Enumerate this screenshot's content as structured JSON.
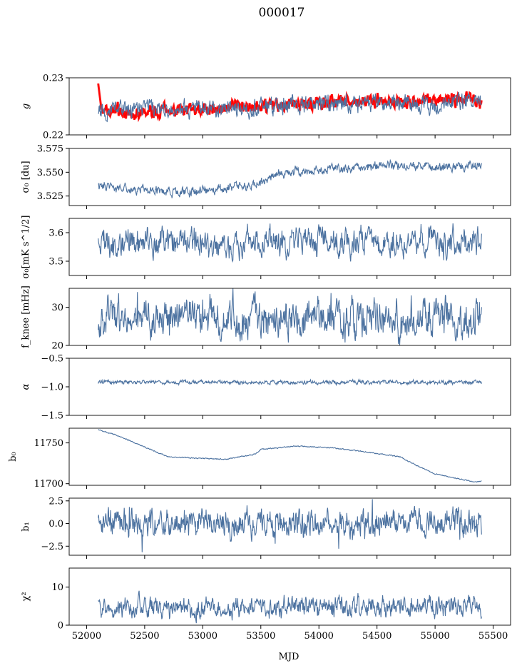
{
  "figure": {
    "title": "000017",
    "xlabel": "MJD"
  },
  "chart_data": [
    {
      "type": "line",
      "ylabel": "g",
      "ylim": [
        0.22,
        0.23
      ],
      "yticks": [
        "0.22",
        "0.23"
      ],
      "xlim": [
        51900,
        55650
      ],
      "series": [
        {
          "color": "#ff0000",
          "x_range": [
            52100,
            55400
          ],
          "description_values": [
            0.2248,
            0.2238,
            0.2242,
            0.2247,
            0.2251,
            0.2257,
            0.2258,
            0.2256,
            0.226,
            0.2262,
            0.2255
          ],
          "x": [
            52100,
            52400,
            52800,
            53200,
            53600,
            54000,
            54400,
            54700,
            55000,
            55300,
            55400
          ]
        },
        {
          "color": "#4c72a0",
          "x": [
            52100,
            52400,
            52800,
            53200,
            53600,
            54000,
            54400,
            54700,
            55000,
            55300,
            55400
          ],
          "values": [
            0.2245,
            0.2245,
            0.2243,
            0.2247,
            0.225,
            0.2255,
            0.2256,
            0.2255,
            0.2256,
            0.2257,
            0.2258
          ]
        }
      ]
    },
    {
      "type": "line",
      "ylabel": "σ₀ [du]",
      "ylim": [
        3.515,
        3.575
      ],
      "yticks": [
        "3.525",
        "3.550",
        "3.575"
      ],
      "series": [
        {
          "color": "#4c72a0",
          "x": [
            52100,
            52300,
            52600,
            52900,
            53200,
            53500,
            53600,
            53800,
            54100,
            54400,
            54700,
            55000,
            55300,
            55400
          ],
          "values": [
            3.537,
            3.533,
            3.53,
            3.53,
            3.533,
            3.538,
            3.546,
            3.551,
            3.553,
            3.555,
            3.558,
            3.555,
            3.556,
            3.558
          ]
        }
      ]
    },
    {
      "type": "line",
      "ylabel": "σ₀[mK s^1/2]",
      "ylim": [
        3.45,
        3.65
      ],
      "yticks": [
        "3.5",
        "3.6"
      ],
      "series": [
        {
          "color": "#4c72a0",
          "x": [
            52100,
            52500,
            52900,
            53300,
            53700,
            54100,
            54500,
            54900,
            55300,
            55400
          ],
          "values": [
            3.57,
            3.565,
            3.56,
            3.555,
            3.565,
            3.57,
            3.565,
            3.57,
            3.565,
            3.57
          ]
        }
      ]
    },
    {
      "type": "line",
      "ylabel": "f_knee [mHz]",
      "ylim": [
        20,
        35
      ],
      "yticks": [
        "20",
        "30"
      ],
      "series": [
        {
          "color": "#4c72a0",
          "x": [
            52100,
            52500,
            52900,
            53300,
            53700,
            54100,
            54500,
            54900,
            55300,
            55400
          ],
          "values": [
            27,
            27,
            27,
            27,
            26.5,
            26.5,
            27,
            27,
            27.5,
            28
          ]
        }
      ]
    },
    {
      "type": "line",
      "ylabel": "α",
      "ylim": [
        -1.5,
        -0.5
      ],
      "yticks": [
        "−1.5",
        "−1.0",
        "−0.5"
      ],
      "series": [
        {
          "color": "#4c72a0",
          "x": [
            52100,
            52800,
            53500,
            54200,
            54900,
            55400
          ],
          "values": [
            -0.92,
            -0.92,
            -0.92,
            -0.92,
            -0.92,
            -0.92
          ]
        }
      ]
    },
    {
      "type": "line",
      "ylabel": "b₀",
      "ylim": [
        11698,
        11768
      ],
      "yticks": [
        "11700",
        "11750"
      ],
      "series": [
        {
          "color": "#4c72a0",
          "x": [
            52100,
            52250,
            52450,
            52700,
            53000,
            53200,
            53450,
            53500,
            53800,
            54100,
            54400,
            54700,
            54800,
            55000,
            55200,
            55350,
            55400
          ],
          "values": [
            11766,
            11760,
            11748,
            11733,
            11731,
            11730,
            11736,
            11742,
            11746,
            11744,
            11739,
            11733,
            11725,
            11712,
            11706,
            11702,
            11703
          ]
        }
      ]
    },
    {
      "type": "line",
      "ylabel": "b₁",
      "ylim": [
        -3.5,
        2.8
      ],
      "yticks": [
        "−2.5",
        "0.0",
        "2.5"
      ],
      "series": [
        {
          "color": "#4c72a0",
          "x": [
            52100,
            52800,
            53500,
            54200,
            54900,
            55400
          ],
          "values": [
            0.0,
            0.0,
            0.0,
            0.0,
            0.0,
            0.0
          ]
        }
      ]
    },
    {
      "type": "line",
      "ylabel": "χ²",
      "ylim": [
        0,
        15
      ],
      "yticks": [
        "0",
        "10"
      ],
      "xticks": [
        "52000",
        "52500",
        "53000",
        "53500",
        "54000",
        "54500",
        "55000",
        "55500"
      ],
      "series": [
        {
          "color": "#4c72a0",
          "x": [
            52100,
            52500,
            52900,
            53300,
            53700,
            54100,
            54500,
            54900,
            55300,
            55400
          ],
          "values": [
            4.5,
            5,
            4.5,
            5,
            4.5,
            5,
            5,
            4.5,
            5.5,
            4
          ]
        }
      ]
    }
  ]
}
